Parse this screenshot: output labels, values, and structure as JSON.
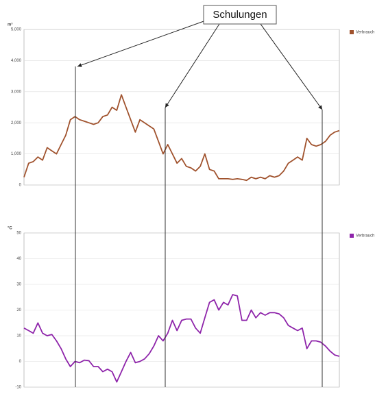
{
  "chart_data": [
    {
      "type": "line",
      "annotation": "Schulungen",
      "ylabel": "m³",
      "categories": [
        null,
        null,
        null,
        null,
        null,
        null,
        null,
        null,
        null,
        null,
        null,
        null,
        null,
        null,
        null,
        null,
        null,
        null,
        null,
        null,
        null,
        null,
        null,
        null,
        null,
        null,
        null,
        null,
        null,
        null,
        null,
        null,
        null,
        null,
        null,
        null,
        null,
        null,
        null,
        null,
        null,
        null,
        null,
        null,
        null,
        null,
        null,
        null,
        null,
        null,
        null,
        null,
        null,
        null,
        null,
        null,
        null,
        null,
        null,
        null,
        null,
        null,
        null,
        null,
        null,
        null,
        null,
        null,
        null
      ],
      "series": [
        {
          "name": "Verbrauch",
          "color": "#a0522d",
          "values": [
            250,
            700,
            750,
            900,
            800,
            1200,
            1100,
            1000,
            1300,
            1600,
            2100,
            2200,
            2100,
            2050,
            2000,
            1950,
            2000,
            2200,
            2250,
            2500,
            2400,
            2900,
            2500,
            2100,
            1700,
            2100,
            2000,
            1900,
            1800,
            1400,
            1000,
            1300,
            1000,
            700,
            850,
            600,
            550,
            450,
            600,
            1000,
            500,
            450,
            200,
            200,
            200,
            180,
            200,
            180,
            150,
            250,
            200,
            250,
            200,
            300,
            250,
            300,
            450,
            700,
            800,
            900,
            800,
            1500,
            1300,
            1250,
            1300,
            1400,
            1600,
            1700,
            1750
          ]
        }
      ],
      "ylim": [
        0,
        5000
      ],
      "yticks": [
        0,
        {
          "value": 1000,
          "label": "1,000"
        },
        {
          "value": 2000,
          "label": "2,000"
        },
        {
          "value": 3000,
          "label": "3,000"
        },
        {
          "value": 4000,
          "label": "4,000"
        },
        {
          "value": 5000,
          "label": "5,000"
        }
      ],
      "grid": true,
      "legend": "right"
    },
    {
      "type": "line",
      "ylabel": "°C",
      "categories": [
        null,
        null,
        null,
        null,
        null,
        null,
        null,
        null,
        null,
        null,
        null,
        null,
        null,
        null,
        null,
        null,
        null,
        null,
        null,
        null,
        null,
        null,
        null,
        null,
        null,
        null,
        null,
        null,
        null,
        null,
        null,
        null,
        null,
        null,
        null,
        null,
        null,
        null,
        null,
        null,
        null,
        null,
        null,
        null,
        null,
        null,
        null,
        null,
        null,
        null,
        null,
        null,
        null,
        null,
        null,
        null,
        null,
        null,
        null,
        null,
        null,
        null,
        null,
        null,
        null,
        null,
        null,
        null,
        null
      ],
      "series": [
        {
          "name": "Verbrauch",
          "color": "#8e24aa",
          "values": [
            13,
            12,
            11,
            15,
            11,
            10,
            10.5,
            8,
            5,
            1,
            -2,
            0,
            -0.5,
            0.5,
            0.3,
            -2,
            -2,
            -4,
            -3,
            -4,
            -8,
            -4,
            0,
            3.5,
            -0.5,
            0,
            1,
            3,
            6,
            10,
            8,
            11,
            16,
            12,
            16,
            16.5,
            16.5,
            13,
            11,
            17,
            23,
            24,
            20,
            23,
            22,
            26,
            25.5,
            16,
            16,
            20,
            17,
            19,
            18,
            19,
            19,
            18.5,
            17,
            14,
            13,
            12,
            13,
            5,
            8,
            8,
            7.5,
            6,
            4,
            2.5,
            2
          ]
        }
      ],
      "ylim": [
        -10,
        50
      ],
      "yticks": [
        -10,
        0,
        10,
        20,
        30,
        40,
        50
      ],
      "grid": true,
      "legend": "right"
    }
  ]
}
